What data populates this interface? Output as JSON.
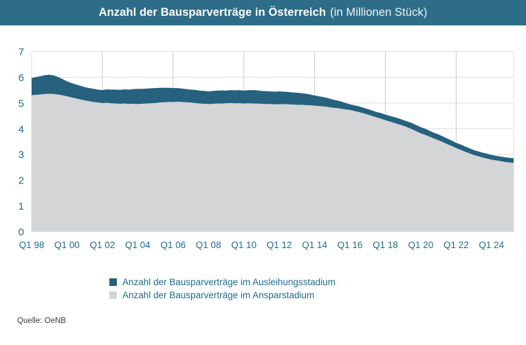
{
  "header": {
    "title": "Anzahl der Bausparverträge in Österreich",
    "subtitle": "(in Millionen Stück)",
    "bar_color": "#2d6d88"
  },
  "source": "Quelle: OeNB",
  "colors": {
    "accent_teal": "#26617e",
    "light_gray": "#d3d5d6",
    "tick_text": "#1e6a8f",
    "h_gridline": "#dcdede",
    "v_gridline": "#c6cacb"
  },
  "legend": {
    "items": [
      {
        "label": "Anzahl der Bausparverträge im Ausleihungsstadium",
        "color": "#26617e"
      },
      {
        "label": "Anzahl der Bausparverträge im Ansparstadium",
        "color": "#d3d5d6"
      }
    ]
  },
  "chart_data": {
    "type": "area",
    "stacked": true,
    "title": "Anzahl der Bausparverträge in Österreich (in Millionen Stück)",
    "xlabel": "",
    "ylabel": "",
    "ylim": [
      0,
      7
    ],
    "y_ticks": [
      0,
      1,
      2,
      3,
      4,
      5,
      6,
      7
    ],
    "grid": true,
    "legend_position": "bottom",
    "x_start": "1998 Q1",
    "x_end": "2025 Q2",
    "x_frequency": "quarterly",
    "x_tick_labels": [
      "Q1 98",
      "Q1 00",
      "Q1 02",
      "Q1 04",
      "Q1 06",
      "Q1 08",
      "Q1 10",
      "Q1 12",
      "Q1 14",
      "Q1 16",
      "Q1 18",
      "Q1 20",
      "Q1 22",
      "Q1 24"
    ],
    "tick_every": 8,
    "vgrid_indices": [
      16,
      32,
      48,
      64,
      80,
      96
    ],
    "series": [
      {
        "name": "Anzahl der Bausparverträge im Ansparstadium",
        "color": "#d3d5d6",
        "stack_order": "bottom",
        "values": [
          5.3,
          5.32,
          5.33,
          5.35,
          5.36,
          5.35,
          5.33,
          5.3,
          5.26,
          5.22,
          5.18,
          5.14,
          5.1,
          5.07,
          5.04,
          5.02,
          5.0,
          5.01,
          4.99,
          4.98,
          4.97,
          4.98,
          4.96,
          4.97,
          4.96,
          4.97,
          4.98,
          4.99,
          5.0,
          5.02,
          5.03,
          5.04,
          5.04,
          5.05,
          5.04,
          5.03,
          5.02,
          5.0,
          4.98,
          4.97,
          4.96,
          4.97,
          4.98,
          4.98,
          4.99,
          5.0,
          4.99,
          4.99,
          4.98,
          4.99,
          4.98,
          4.98,
          4.97,
          4.96,
          4.96,
          4.95,
          4.95,
          4.96,
          4.95,
          4.94,
          4.93,
          4.93,
          4.92,
          4.91,
          4.9,
          4.88,
          4.87,
          4.85,
          4.82,
          4.8,
          4.78,
          4.75,
          4.73,
          4.69,
          4.65,
          4.6,
          4.55,
          4.5,
          4.44,
          4.39,
          4.33,
          4.28,
          4.23,
          4.17,
          4.12,
          4.05,
          3.98,
          3.9,
          3.82,
          3.76,
          3.69,
          3.62,
          3.55,
          3.48,
          3.4,
          3.33,
          3.25,
          3.18,
          3.11,
          3.04,
          2.98,
          2.93,
          2.88,
          2.84,
          2.8,
          2.77,
          2.74,
          2.71,
          2.69,
          2.67
        ]
      },
      {
        "name": "Anzahl der Bausparverträge im Ausleihungsstadium",
        "color": "#26617e",
        "stack_order": "top",
        "values": [
          0.67,
          0.69,
          0.71,
          0.73,
          0.74,
          0.72,
          0.68,
          0.63,
          0.58,
          0.56,
          0.54,
          0.53,
          0.52,
          0.51,
          0.51,
          0.5,
          0.5,
          0.52,
          0.53,
          0.54,
          0.54,
          0.55,
          0.56,
          0.57,
          0.59,
          0.58,
          0.58,
          0.58,
          0.58,
          0.57,
          0.56,
          0.55,
          0.54,
          0.53,
          0.52,
          0.51,
          0.5,
          0.51,
          0.5,
          0.5,
          0.49,
          0.5,
          0.5,
          0.51,
          0.49,
          0.5,
          0.5,
          0.51,
          0.5,
          0.51,
          0.52,
          0.51,
          0.5,
          0.5,
          0.49,
          0.49,
          0.5,
          0.48,
          0.48,
          0.47,
          0.47,
          0.45,
          0.44,
          0.42,
          0.39,
          0.38,
          0.36,
          0.34,
          0.32,
          0.3,
          0.28,
          0.25,
          0.22,
          0.22,
          0.22,
          0.22,
          0.21,
          0.21,
          0.21,
          0.22,
          0.22,
          0.22,
          0.22,
          0.23,
          0.22,
          0.23,
          0.24,
          0.24,
          0.24,
          0.24,
          0.23,
          0.22,
          0.23,
          0.22,
          0.22,
          0.21,
          0.2,
          0.21,
          0.2,
          0.2,
          0.19,
          0.19,
          0.19,
          0.19,
          0.18,
          0.18,
          0.18,
          0.18,
          0.18,
          0.18
        ]
      }
    ]
  }
}
